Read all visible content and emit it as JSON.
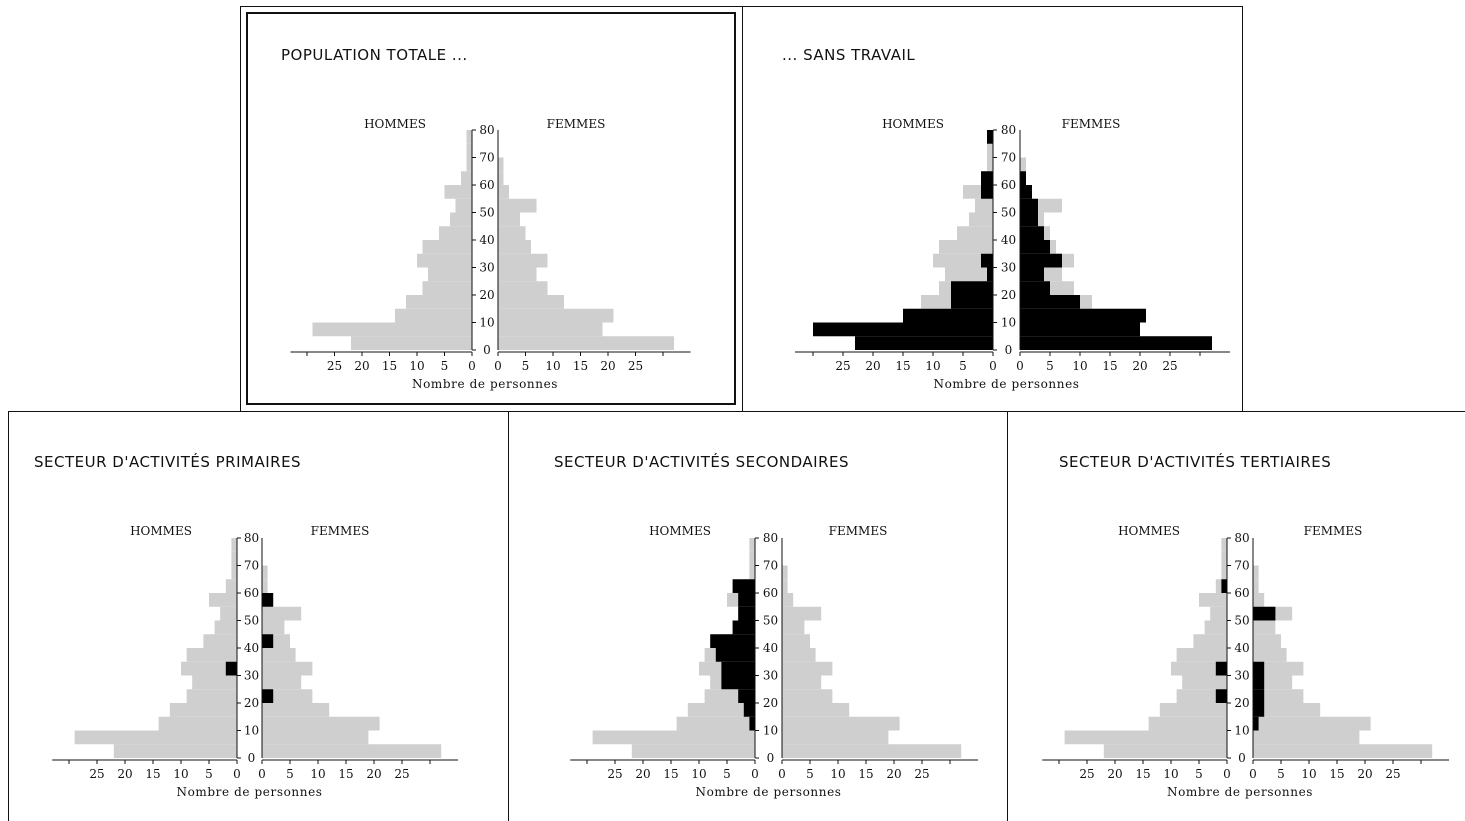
{
  "ui": {
    "hommes_label": "HOMMES",
    "femmes_label": "FEMMES",
    "xlabel": "Nombre de personnes",
    "age_ticks": [
      "0",
      "10",
      "20",
      "30",
      "40",
      "50",
      "60",
      "70",
      "80"
    ],
    "count_ticks": [
      "25",
      "20",
      "15",
      "10",
      "5",
      "0"
    ]
  },
  "panels": {
    "total": {
      "title": "POPULATION TOTALE ..."
    },
    "sans_travail": {
      "title": "... SANS TRAVAIL"
    },
    "primaires": {
      "title": "SECTEUR D'ACTIVITÉS PRIMAIRES"
    },
    "secondaires": {
      "title": "SECTEUR D'ACTIVITÉS SECONDAIRES"
    },
    "tertiaires": {
      "title": "SECTEUR D'ACTIVITÉS TERTIAIRES"
    }
  },
  "colors": {
    "population_fill": "#cfcfcf",
    "subgroup_fill": "#000000",
    "axis": "#111111"
  },
  "chart_data": [
    {
      "id": "total",
      "type": "bar",
      "title": "POPULATION TOTALE ...",
      "xlabel": "Nombre de personnes",
      "age_groups": [
        "0-4",
        "5-9",
        "10-14",
        "15-19",
        "20-24",
        "25-29",
        "30-34",
        "35-39",
        "40-44",
        "45-49",
        "50-54",
        "55-59",
        "60-64",
        "65-69",
        "70-74",
        "75-79"
      ],
      "series": [
        {
          "name": "HOMMES",
          "values": [
            22,
            29,
            14,
            12,
            9,
            8,
            10,
            9,
            6,
            4,
            3,
            5,
            2,
            1,
            1,
            1
          ]
        },
        {
          "name": "FEMMES",
          "values": [
            32,
            19,
            21,
            12,
            9,
            7,
            9,
            6,
            5,
            4,
            7,
            2,
            1,
            1,
            0,
            0
          ]
        }
      ],
      "ylim": [
        0,
        80
      ],
      "xlim": [
        0,
        30
      ]
    },
    {
      "id": "sans_travail",
      "type": "bar",
      "title": "... SANS TRAVAIL",
      "xlabel": "Nombre de personnes",
      "age_groups": [
        "0-4",
        "5-9",
        "10-14",
        "15-19",
        "20-24",
        "25-29",
        "30-34",
        "35-39",
        "40-44",
        "45-49",
        "50-54",
        "55-59",
        "60-64",
        "65-69",
        "70-74",
        "75-79"
      ],
      "series": [
        {
          "name": "HOMMES",
          "values": [
            22,
            29,
            14,
            12,
            9,
            8,
            10,
            9,
            6,
            4,
            3,
            5,
            2,
            1,
            1,
            1
          ]
        },
        {
          "name": "FEMMES",
          "values": [
            32,
            19,
            21,
            12,
            9,
            7,
            9,
            6,
            5,
            4,
            7,
            2,
            1,
            1,
            0,
            0
          ]
        },
        {
          "name": "HOMMES",
          "values": [
            23,
            30,
            15,
            7,
            7,
            1,
            2,
            0,
            0,
            0,
            0,
            2,
            2,
            0,
            0,
            1
          ]
        },
        {
          "name": "FEMMES",
          "values": [
            32,
            20,
            21,
            10,
            5,
            4,
            7,
            5,
            4,
            3,
            3,
            2,
            1,
            0,
            0,
            0
          ]
        }
      ],
      "ylim": [
        0,
        80
      ],
      "xlim": [
        0,
        30
      ]
    },
    {
      "id": "primaires",
      "type": "bar",
      "title": "SECTEUR D'ACTIVITÉS PRIMAIRES",
      "xlabel": "Nombre de personnes",
      "age_groups": [
        "0-4",
        "5-9",
        "10-14",
        "15-19",
        "20-24",
        "25-29",
        "30-34",
        "35-39",
        "40-44",
        "45-49",
        "50-54",
        "55-59",
        "60-64",
        "65-69",
        "70-74",
        "75-79"
      ],
      "series": [
        {
          "name": "HOMMES",
          "values": [
            22,
            29,
            14,
            12,
            9,
            8,
            10,
            9,
            6,
            4,
            3,
            5,
            2,
            1,
            1,
            1
          ]
        },
        {
          "name": "FEMMES",
          "values": [
            32,
            19,
            21,
            12,
            9,
            7,
            9,
            6,
            5,
            4,
            7,
            2,
            1,
            1,
            0,
            0
          ]
        },
        {
          "name": "HOMMES",
          "values": [
            0,
            0,
            0,
            0,
            0,
            0,
            2,
            0,
            0,
            0,
            0,
            0,
            0,
            0,
            0,
            0
          ]
        },
        {
          "name": "FEMMES",
          "values": [
            0,
            0,
            0,
            0,
            2,
            0,
            0,
            0,
            2,
            0,
            0,
            2,
            0,
            0,
            0,
            0
          ]
        }
      ],
      "ylim": [
        0,
        80
      ],
      "xlim": [
        0,
        30
      ]
    },
    {
      "id": "secondaires",
      "type": "bar",
      "title": "SECTEUR D'ACTIVITÉS SECONDAIRES",
      "xlabel": "Nombre de personnes",
      "age_groups": [
        "0-4",
        "5-9",
        "10-14",
        "15-19",
        "20-24",
        "25-29",
        "30-34",
        "35-39",
        "40-44",
        "45-49",
        "50-54",
        "55-59",
        "60-64",
        "65-69",
        "70-74",
        "75-79"
      ],
      "series": [
        {
          "name": "HOMMES",
          "values": [
            22,
            29,
            14,
            12,
            9,
            8,
            10,
            9,
            6,
            4,
            3,
            5,
            2,
            1,
            1,
            1
          ]
        },
        {
          "name": "FEMMES",
          "values": [
            32,
            19,
            21,
            12,
            9,
            7,
            9,
            6,
            5,
            4,
            7,
            2,
            1,
            1,
            0,
            0
          ]
        },
        {
          "name": "HOMMES",
          "values": [
            0,
            0,
            1,
            2,
            3,
            6,
            6,
            7,
            8,
            4,
            3,
            3,
            4,
            0,
            0,
            0
          ]
        },
        {
          "name": "FEMMES",
          "values": [
            0,
            0,
            0,
            0,
            0,
            0,
            0,
            0,
            0,
            0,
            0,
            0,
            0,
            0,
            0,
            0
          ]
        }
      ],
      "ylim": [
        0,
        80
      ],
      "xlim": [
        0,
        30
      ]
    },
    {
      "id": "tertiaires",
      "type": "bar",
      "title": "SECTEUR D'ACTIVITÉS TERTIAIRES",
      "xlabel": "Nombre de personnes",
      "age_groups": [
        "0-4",
        "5-9",
        "10-14",
        "15-19",
        "20-24",
        "25-29",
        "30-34",
        "35-39",
        "40-44",
        "45-49",
        "50-54",
        "55-59",
        "60-64",
        "65-69",
        "70-74",
        "75-79"
      ],
      "series": [
        {
          "name": "HOMMES",
          "values": [
            22,
            29,
            14,
            12,
            9,
            8,
            10,
            9,
            6,
            4,
            3,
            5,
            2,
            1,
            1,
            1
          ]
        },
        {
          "name": "FEMMES",
          "values": [
            32,
            19,
            21,
            12,
            9,
            7,
            9,
            6,
            5,
            4,
            7,
            2,
            1,
            1,
            0,
            0
          ]
        },
        {
          "name": "HOMMES",
          "values": [
            0,
            0,
            0,
            0,
            2,
            0,
            2,
            0,
            0,
            0,
            0,
            0,
            1,
            0,
            0,
            0
          ]
        },
        {
          "name": "FEMMES",
          "values": [
            0,
            0,
            1,
            2,
            2,
            2,
            2,
            0,
            0,
            0,
            4,
            0,
            0,
            0,
            0,
            0
          ]
        }
      ],
      "ylim": [
        0,
        80
      ],
      "xlim": [
        0,
        30
      ]
    }
  ]
}
